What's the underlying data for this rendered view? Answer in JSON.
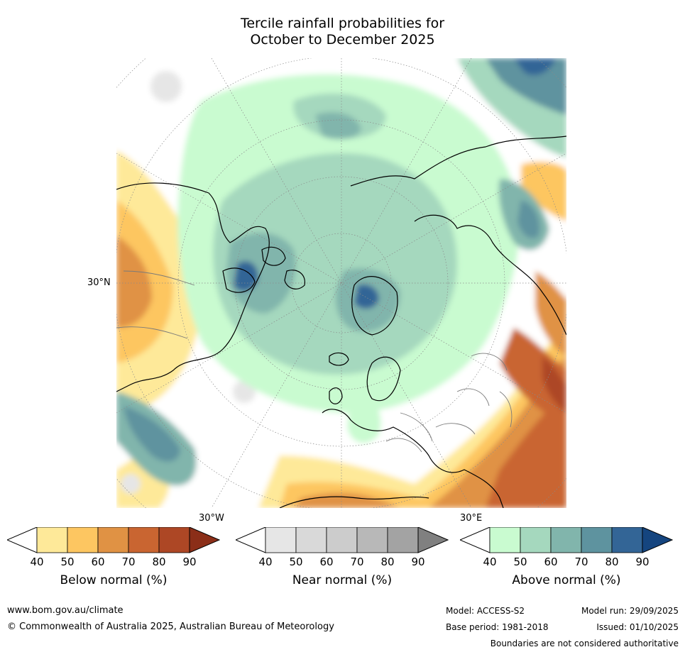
{
  "title_line1": "Tercile rainfall probabilities for",
  "title_line2": "October to December 2025",
  "map": {
    "lat_label": "30°N",
    "lon_label_left": "30°W",
    "lon_label_right": "30°E",
    "colors": {
      "below": [
        "#fee999",
        "#fdc661",
        "#e09244",
        "#c96531",
        "#ad4725",
        "#8b2e18"
      ],
      "near": [
        "#e6e6e6",
        "#d9d9d9",
        "#cccccc",
        "#b8b8b8",
        "#a3a3a3",
        "#808080"
      ],
      "above": [
        "#c9fbd0",
        "#a5d8be",
        "#81b5ac",
        "#5e939f",
        "#336596",
        "#15457f"
      ]
    }
  },
  "legend": {
    "below": {
      "label": "Below normal (%)",
      "ticks": [
        "40",
        "50",
        "60",
        "70",
        "80",
        "90"
      ]
    },
    "near": {
      "label": "Near normal (%)",
      "ticks": [
        "40",
        "50",
        "60",
        "70",
        "80",
        "90"
      ]
    },
    "above": {
      "label": "Above normal (%)",
      "ticks": [
        "40",
        "50",
        "60",
        "70",
        "80",
        "90"
      ]
    }
  },
  "footer": {
    "website": "www.bom.gov.au/climate",
    "copyright": "© Commonwealth of Australia 2025, Australian Bureau of Meteorology",
    "model": "Model: ACCESS-S2",
    "base_period": "Base period: 1981-2018",
    "model_run": "Model run: 29/09/2025",
    "issued": "Issued: 01/10/2025",
    "disclaimer": "Boundaries are not considered authoritative"
  }
}
